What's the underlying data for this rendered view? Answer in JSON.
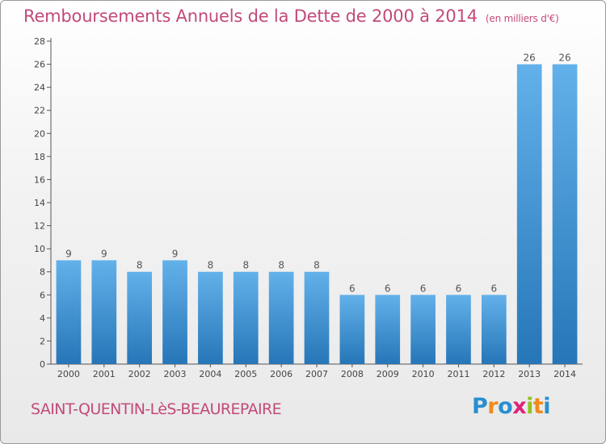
{
  "header": {
    "title": "Remboursements Annuels de la Dette de 2000 à 2014",
    "unit": "(en milliers d'€)"
  },
  "footer": {
    "town": "SAINT-QUENTIN-LèS-BEAUREPAIRE",
    "logo_text": "Proxiti",
    "logo_letters": [
      "P",
      "r",
      "o",
      "x",
      "i",
      "t",
      "i"
    ],
    "logo_colors": [
      "#2a8fcf",
      "#f08a1c",
      "#2a8fcf",
      "#e0227a",
      "#8fc31f",
      "#f08a1c",
      "#2a8fcf"
    ]
  },
  "colors": {
    "bar": "#3d96d8",
    "bar_light": "#63b1ea",
    "bar_dark": "#2676b8",
    "text": "#c24a7a",
    "axis": "#555555",
    "grid": "#dddddd"
  },
  "chart_data": {
    "type": "bar",
    "title": "Remboursements Annuels de la Dette de 2000 à 2014",
    "subtitle": "(en milliers d'€)",
    "xlabel": "",
    "ylabel": "",
    "categories": [
      "2000",
      "2001",
      "2002",
      "2003",
      "2004",
      "2005",
      "2006",
      "2007",
      "2008",
      "2009",
      "2010",
      "2011",
      "2012",
      "2013",
      "2014"
    ],
    "values": [
      9,
      9,
      8,
      9,
      8,
      8,
      8,
      8,
      6,
      6,
      6,
      6,
      6,
      26,
      26
    ],
    "ylim": [
      0,
      28
    ],
    "yticks": [
      0,
      2,
      4,
      6,
      8,
      10,
      12,
      14,
      16,
      18,
      20,
      22,
      24,
      26,
      28
    ],
    "grid": false,
    "legend": "none"
  }
}
